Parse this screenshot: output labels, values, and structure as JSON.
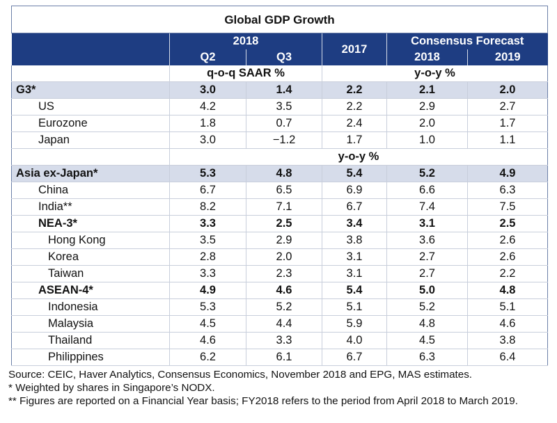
{
  "chart_data": {
    "type": "table",
    "title": "Global GDP Growth",
    "header": {
      "group_2018": "2018",
      "col_2017": "2017",
      "group_forecast": "Consensus Forecast",
      "q2": "Q2",
      "q3": "Q3",
      "f2018": "2018",
      "f2019": "2019",
      "unit_qoq": "q-o-q SAAR %",
      "unit_yoy": "y-o-y %",
      "unit_yoy2": "y-o-y %"
    },
    "rows_g3": [
      {
        "label": "G3*",
        "values": [
          "3.0",
          "1.4",
          "2.2",
          "2.1",
          "2.0"
        ],
        "style": "agg"
      },
      {
        "label": "US",
        "values": [
          "4.2",
          "3.5",
          "2.2",
          "2.9",
          "2.7"
        ],
        "style": "ind1"
      },
      {
        "label": "Eurozone",
        "values": [
          "1.8",
          "0.7",
          "2.4",
          "2.0",
          "1.7"
        ],
        "style": "ind1"
      },
      {
        "label": "Japan",
        "values": [
          "3.0",
          "−1.2",
          "1.7",
          "1.0",
          "1.1"
        ],
        "style": "ind1"
      }
    ],
    "rows_asia": [
      {
        "label": "Asia ex-Japan*",
        "values": [
          "5.3",
          "4.8",
          "5.4",
          "5.2",
          "4.9"
        ],
        "style": "agg"
      },
      {
        "label": "China",
        "values": [
          "6.7",
          "6.5",
          "6.9",
          "6.6",
          "6.3"
        ],
        "style": "ind1"
      },
      {
        "label": "India**",
        "values": [
          "8.2",
          "7.1",
          "6.7",
          "7.4",
          "7.5"
        ],
        "style": "ind1"
      },
      {
        "label": "NEA-3*",
        "values": [
          "3.3",
          "2.5",
          "3.4",
          "3.1",
          "2.5"
        ],
        "style": "bold"
      },
      {
        "label": "Hong Kong",
        "values": [
          "3.5",
          "2.9",
          "3.8",
          "3.6",
          "2.6"
        ],
        "style": "ind3"
      },
      {
        "label": "Korea",
        "values": [
          "2.8",
          "2.0",
          "3.1",
          "2.7",
          "2.6"
        ],
        "style": "ind3"
      },
      {
        "label": "Taiwan",
        "values": [
          "3.3",
          "2.3",
          "3.1",
          "2.7",
          "2.2"
        ],
        "style": "ind3"
      },
      {
        "label": "ASEAN-4*",
        "values": [
          "4.9",
          "4.6",
          "5.4",
          "5.0",
          "4.8"
        ],
        "style": "bold"
      },
      {
        "label": "Indonesia",
        "values": [
          "5.3",
          "5.2",
          "5.1",
          "5.2",
          "5.1"
        ],
        "style": "ind3"
      },
      {
        "label": "Malaysia",
        "values": [
          "4.5",
          "4.4",
          "5.9",
          "4.8",
          "4.6"
        ],
        "style": "ind3"
      },
      {
        "label": "Thailand",
        "values": [
          "4.6",
          "3.3",
          "4.0",
          "4.5",
          "3.8"
        ],
        "style": "ind3"
      },
      {
        "label": "Philippines",
        "values": [
          "6.2",
          "6.1",
          "6.7",
          "6.3",
          "6.4"
        ],
        "style": "ind3"
      }
    ]
  },
  "notes": {
    "source": "Source: CEIC, Haver Analytics, Consensus Economics, November 2018 and EPG, MAS estimates.",
    "note1": "* Weighted by shares in Singapore’s NODX.",
    "note2": "** Figures are reported on a Financial Year basis; FY2018 refers to the period from April 2018 to March 2019."
  }
}
